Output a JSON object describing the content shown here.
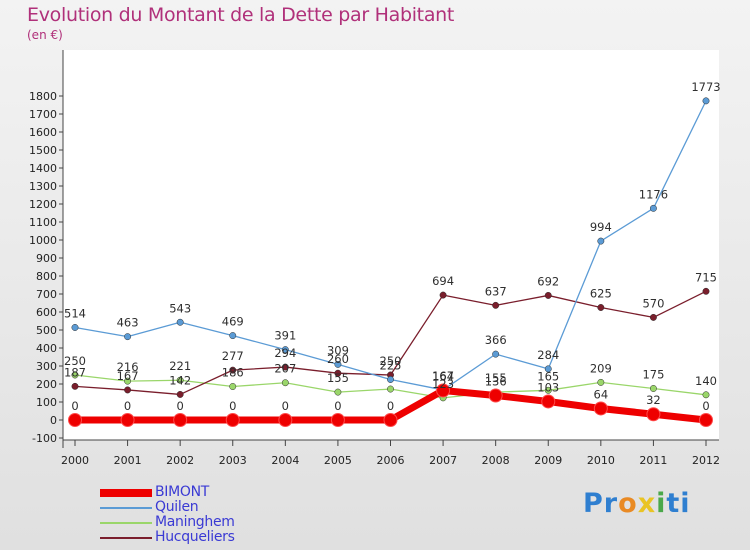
{
  "title": "Evolution du Montant de la Dette par Habitant",
  "unit_label": "(en €)",
  "logo": {
    "letters": [
      "P",
      "r",
      "o",
      "x",
      "i",
      "t",
      "i"
    ],
    "colors": [
      "#2f7fd0",
      "#2f7fd0",
      "#e98a24",
      "#e9c424",
      "#4aa84a",
      "#2f7fd0",
      "#2f7fd0"
    ]
  },
  "chart_data": {
    "type": "line",
    "x": [
      "2000",
      "2001",
      "2002",
      "2003",
      "2004",
      "2005",
      "2006",
      "2007",
      "2008",
      "2009",
      "2010",
      "2011",
      "2012"
    ],
    "yticks": [
      "-100",
      "0",
      "100",
      "200",
      "300",
      "400",
      "500",
      "600",
      "700",
      "800",
      "900",
      "1000",
      "1100",
      "1200",
      "1300",
      "1400",
      "1500",
      "1600",
      "1700",
      "1800"
    ],
    "ylim": [
      -100,
      1800
    ],
    "grid": false,
    "legend_position": "bottom-left",
    "series": [
      {
        "name": "Maninghem",
        "color": "#9ad66a",
        "values": [
          250,
          216,
          221,
          186,
          207,
          155,
          172,
          123,
          155,
          165,
          209,
          175,
          140
        ],
        "labels": [
          "250",
          "216",
          "221",
          "186",
          "207",
          "155",
          "",
          "123",
          "155",
          "165",
          "209",
          "175",
          "140"
        ]
      },
      {
        "name": "Hucqueliers",
        "color": "#7a1e2c",
        "values": [
          187,
          167,
          142,
          277,
          294,
          260,
          250,
          694,
          637,
          692,
          625,
          570,
          715
        ],
        "labels": [
          "187",
          "167",
          "142",
          "277",
          "294",
          "260",
          "250",
          "694",
          "637",
          "692",
          "625",
          "570",
          "715"
        ]
      },
      {
        "name": "Quilen",
        "color": "#5b9bd5",
        "values": [
          514,
          463,
          543,
          469,
          391,
          309,
          225,
          167,
          366,
          284,
          994,
          1176,
          1773
        ],
        "labels": [
          "514",
          "463",
          "543",
          "469",
          "391",
          "309",
          "225",
          "167",
          "366",
          "284",
          "994",
          "1176",
          "1773"
        ]
      },
      {
        "name": "BIMONT",
        "color": "#ee0000",
        "values": [
          0,
          0,
          0,
          0,
          0,
          0,
          0,
          164,
          136,
          103,
          64,
          32,
          0
        ],
        "labels": [
          "0",
          "0",
          "0",
          "0",
          "0",
          "0",
          "0",
          "164",
          "136",
          "103",
          "64",
          "32",
          "0"
        ]
      }
    ]
  }
}
